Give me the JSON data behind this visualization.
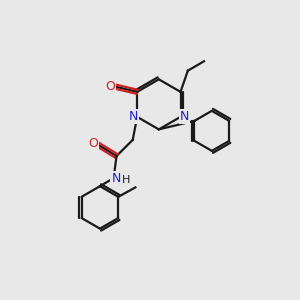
{
  "bg_color": "#e8e8e8",
  "bond_color": "#1a1a1a",
  "n_color": "#2222cc",
  "o_color": "#cc2222",
  "line_width": 1.6,
  "dbo": 0.055,
  "xlim": [
    0,
    10
  ],
  "ylim": [
    0,
    10
  ]
}
